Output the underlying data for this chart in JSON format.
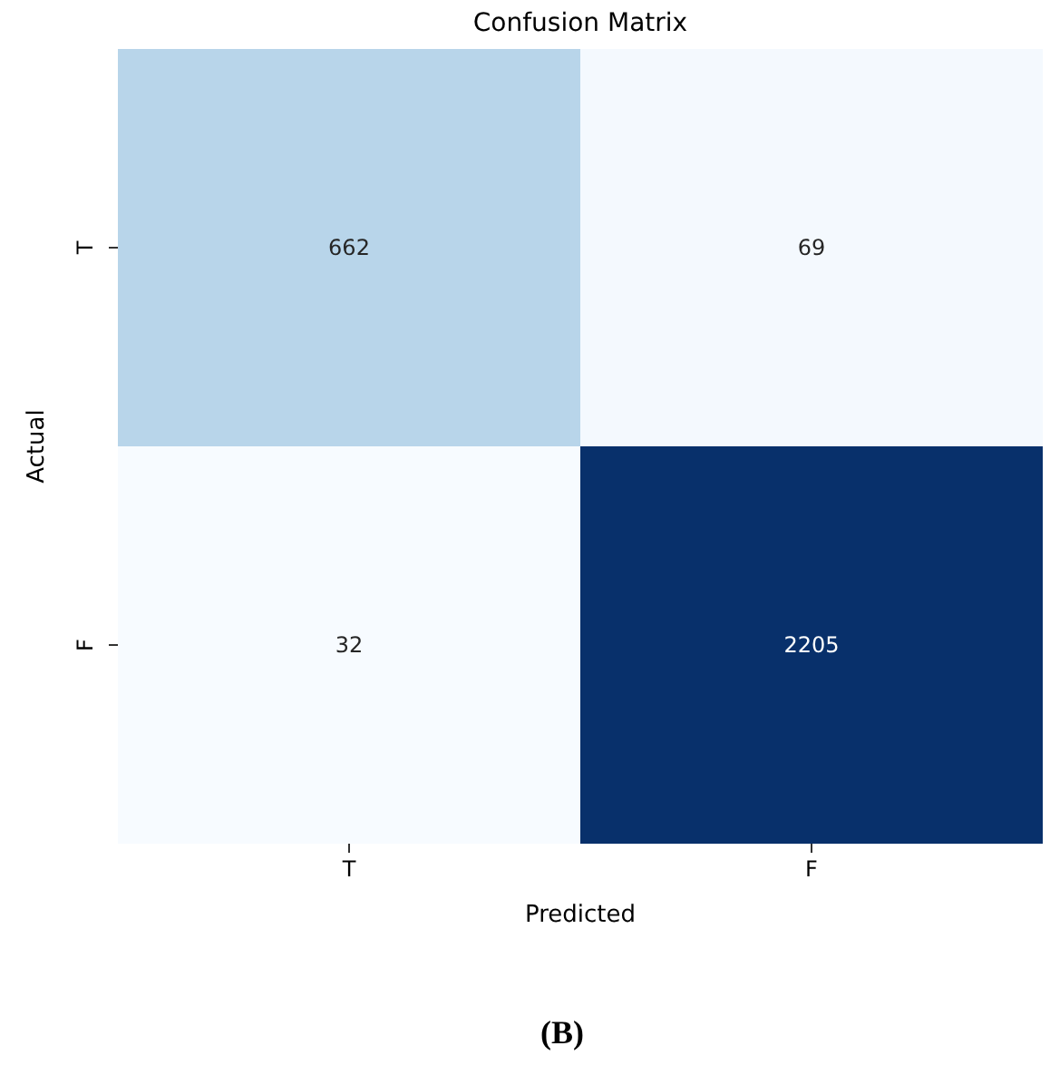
{
  "chart_data": {
    "type": "heatmap",
    "title": "Confusion Matrix",
    "xlabel": "Predicted",
    "ylabel": "Actual",
    "categories": [
      "T",
      "F"
    ],
    "y_categories": [
      "T",
      "F"
    ],
    "cells": [
      [
        662,
        69
      ],
      [
        32,
        2205
      ]
    ],
    "data_labels": true,
    "annotations": [
      "(B)"
    ]
  }
}
